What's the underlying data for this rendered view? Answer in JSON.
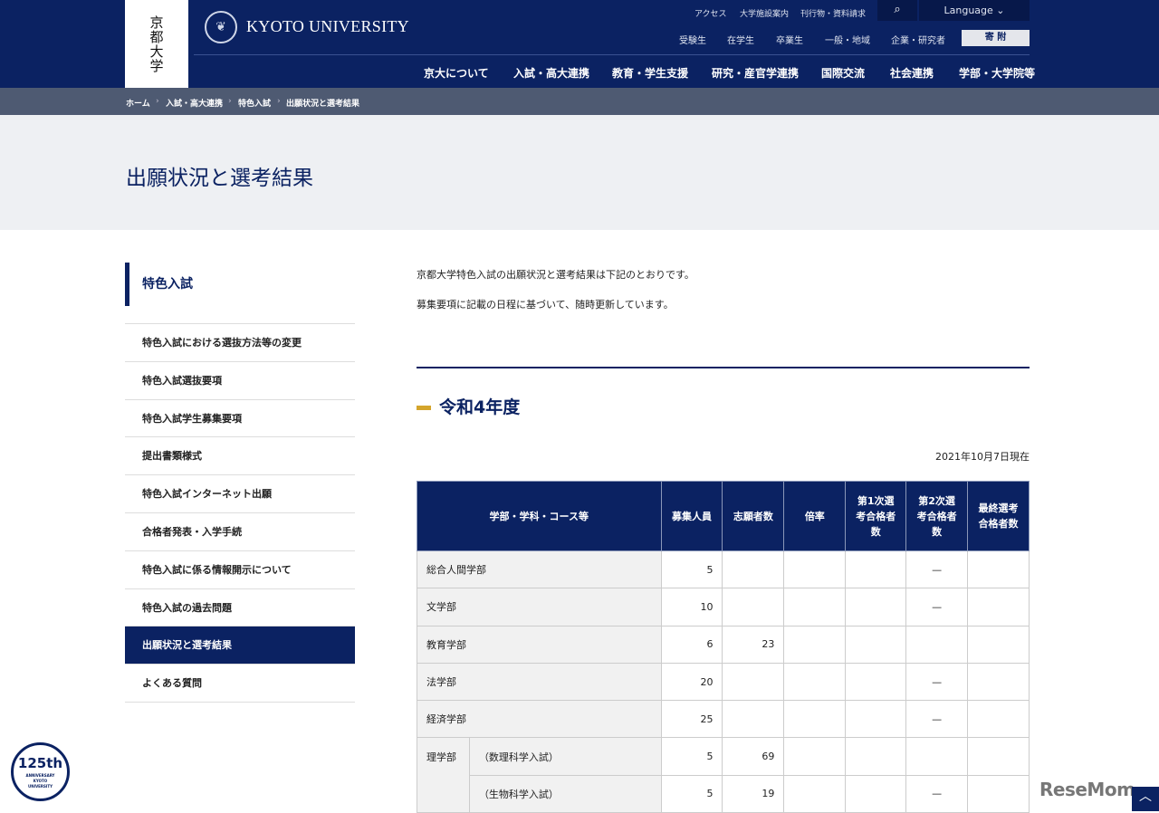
{
  "header": {
    "logo_jp": "京都大学",
    "logo_en": "KYOTO UNIVERSITY",
    "utility": [
      "アクセス",
      "大学施設案内",
      "刊行物・資料請求"
    ],
    "language": "Language ⌄",
    "audience": [
      "受験生",
      "在学生",
      "卒業生",
      "一般・地域",
      "企業・研究者"
    ],
    "donate": "寄 附",
    "nav": [
      "京大について",
      "入試・高大連携",
      "教育・学生支援",
      "研究・産官学連携",
      "国際交流",
      "社会連携",
      "学部・大学院等"
    ]
  },
  "breadcrumb": [
    "ホーム",
    "入試・高大連携",
    "特色入試",
    "出願状況と選考結果"
  ],
  "page_title": "出願状況と選考結果",
  "sidebar": {
    "heading": "特色入試",
    "items": [
      "特色入試における選抜方法等の変更",
      "特色入試選抜要項",
      "特色入試学生募集要項",
      "提出書類様式",
      "特色入試インターネット出願",
      "合格者発表・入学手続",
      "特色入試に係る情報開示について",
      "特色入試の過去問題",
      "出願状況と選考結果",
      "よくある質問"
    ],
    "active": 8
  },
  "intro": [
    "京都大学特色入試の出願状況と選考結果は下記のとおりです。",
    "募集要項に記載の日程に基づいて、随時更新しています。"
  ],
  "section_title": "令和4年度",
  "as_of": "2021年10月7日現在",
  "table": {
    "headers": [
      "学部・学科・コース等",
      "募集人員",
      "志願者数",
      "倍率",
      "第1次選考合格者数",
      "第2次選考合格者数",
      "最終選考合格者数"
    ],
    "rows": [
      {
        "dept": "総合人間学部",
        "course": "",
        "cap": "5",
        "apps": "",
        "ratio": "",
        "r1": "",
        "r2": "—",
        "final": ""
      },
      {
        "dept": "文学部",
        "course": "",
        "cap": "10",
        "apps": "",
        "ratio": "",
        "r1": "",
        "r2": "—",
        "final": ""
      },
      {
        "dept": "教育学部",
        "course": "",
        "cap": "6",
        "apps": "23",
        "ratio": "",
        "r1": "",
        "r2": "",
        "final": ""
      },
      {
        "dept": "法学部",
        "course": "",
        "cap": "20",
        "apps": "",
        "ratio": "",
        "r1": "",
        "r2": "—",
        "final": ""
      },
      {
        "dept": "経済学部",
        "course": "",
        "cap": "25",
        "apps": "",
        "ratio": "",
        "r1": "",
        "r2": "—",
        "final": ""
      },
      {
        "dept": "理学部",
        "course": "（数理科学入試）",
        "cap": "5",
        "apps": "69",
        "ratio": "",
        "r1": "",
        "r2": "",
        "final": ""
      },
      {
        "dept": "",
        "course": "（生物科学入試）",
        "cap": "5",
        "apps": "19",
        "ratio": "",
        "r1": "",
        "r2": "—",
        "final": ""
      }
    ]
  },
  "badge": {
    "text": "125th",
    "sub": "ANNIVERSARY KYOTO UNIVERSITY"
  },
  "watermark": "ReseMom",
  "colors": {
    "navy": "#0b2262",
    "accent": "#d4a52c"
  }
}
